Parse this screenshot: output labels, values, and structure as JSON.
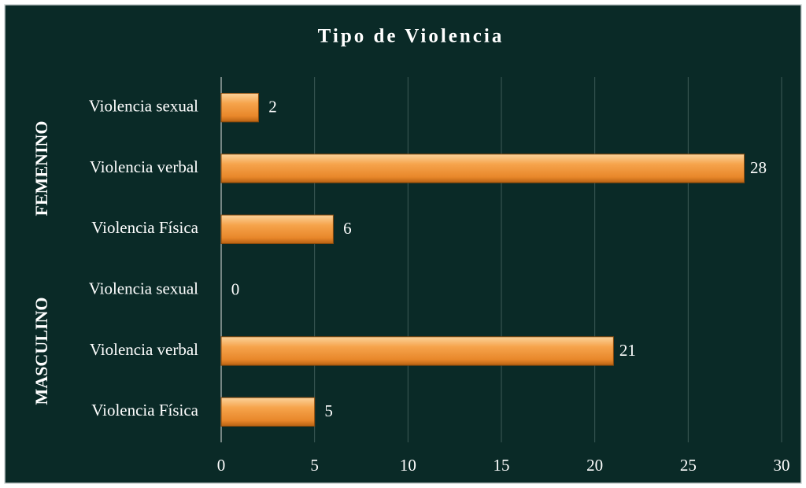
{
  "chart_data": {
    "type": "bar",
    "orientation": "horizontal",
    "title": "Tipo de Violencia",
    "groups": [
      {
        "name": "FEMENINO",
        "categories": [
          "Violencia sexual",
          "Violencia verbal",
          "Violencia Física"
        ],
        "values": [
          2,
          28,
          6
        ]
      },
      {
        "name": "MASCULINO",
        "categories": [
          "Violencia sexual",
          "Violencia verbal",
          "Violencia Física"
        ],
        "values": [
          0,
          21,
          5
        ]
      }
    ],
    "color": "#f59a3c",
    "xlim": [
      0,
      30
    ],
    "xticks": [
      0,
      5,
      10,
      15,
      20,
      25,
      30
    ],
    "grid": true
  }
}
